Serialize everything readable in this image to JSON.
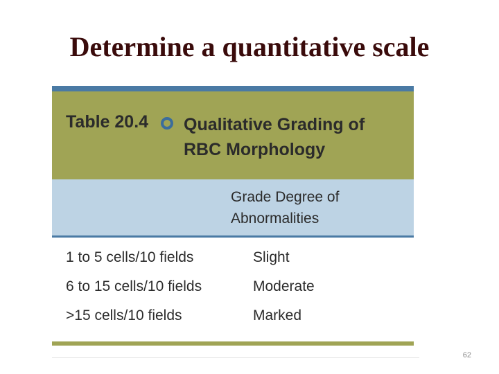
{
  "slide": {
    "title": "Determine a quantitative scale",
    "page_number": "62"
  },
  "table": {
    "number": "Table 20.4",
    "bullet_icon": "circle-bullet-icon",
    "caption": "Qualitative Grading of RBC Morphology",
    "header": "Grade Degree of Abnormalities",
    "rows": [
      {
        "count": "1 to 5 cells/10 fields",
        "grade": "Slight"
      },
      {
        "count": "6 to 15 cells/10 fields",
        "grade": "Moderate"
      },
      {
        "count": ">15 cells/10 fields",
        "grade": "Marked"
      }
    ]
  },
  "colors": {
    "title_band": "#a0a455",
    "header_band": "#bdd3e4",
    "rule_blue": "#4a7aa4",
    "title_text": "#3a0b0b"
  }
}
